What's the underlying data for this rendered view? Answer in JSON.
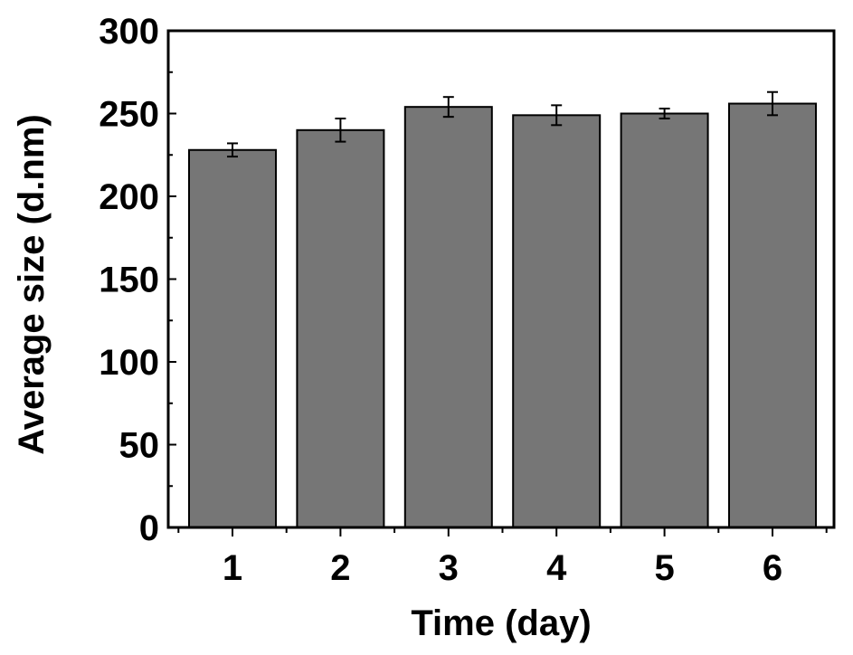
{
  "chart_data": {
    "type": "bar",
    "categories": [
      "1",
      "2",
      "3",
      "4",
      "5",
      "6"
    ],
    "values": [
      228,
      240,
      254,
      249,
      250,
      256
    ],
    "errors": [
      4,
      7,
      6,
      6,
      3,
      7
    ],
    "xlabel": "Time (day)",
    "ylabel": "Average size (d.nm)",
    "ylim": [
      0,
      300
    ],
    "yticks": [
      "0",
      "50",
      "100",
      "150",
      "200",
      "250",
      "300"
    ],
    "grid": false,
    "bar_color": "#767676",
    "bar_edge_color": "#000000"
  }
}
